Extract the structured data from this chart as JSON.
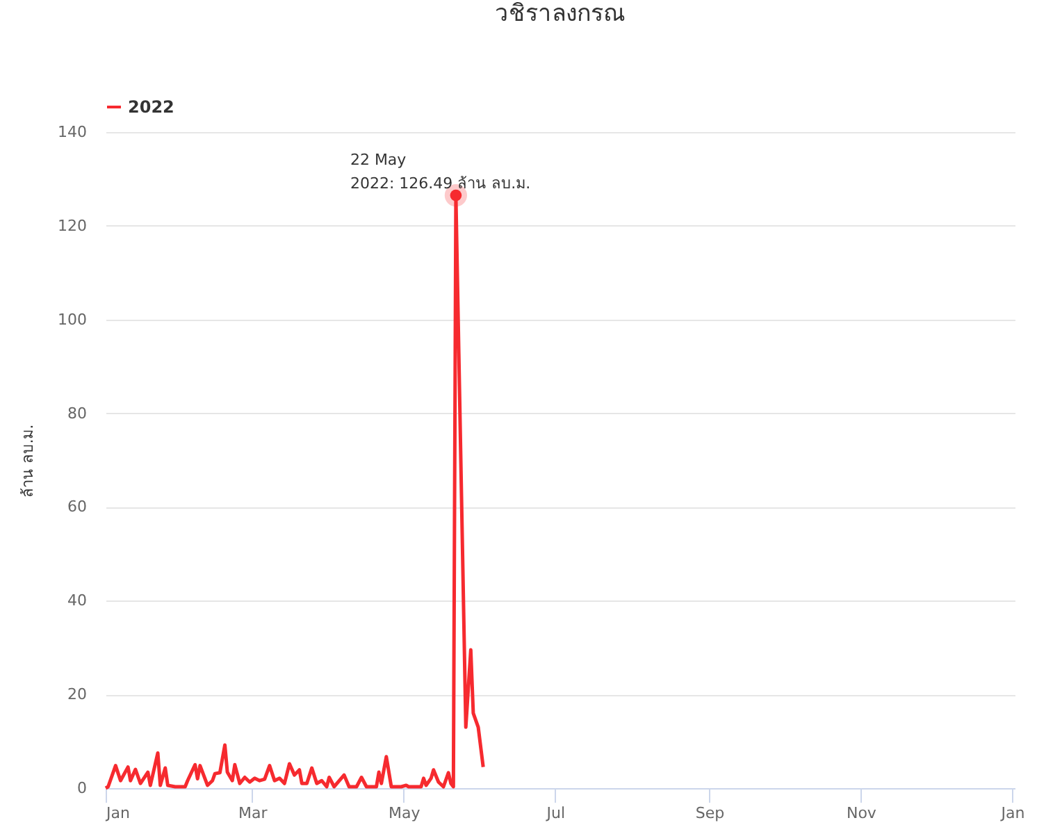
{
  "chart_data": {
    "type": "line",
    "title": "วชิราลงกรณ",
    "ylabel": "ล้าน ลบ.ม.",
    "x": [
      "2022-01-01",
      "2022-01-02",
      "2022-01-05",
      "2022-01-07",
      "2022-01-10",
      "2022-01-11",
      "2022-01-13",
      "2022-01-15",
      "2022-01-18",
      "2022-01-19",
      "2022-01-22",
      "2022-01-23",
      "2022-01-25",
      "2022-01-26",
      "2022-01-29",
      "2022-02-02",
      "2022-02-03",
      "2022-02-06",
      "2022-02-07",
      "2022-02-08",
      "2022-02-11",
      "2022-02-13",
      "2022-02-14",
      "2022-02-16",
      "2022-02-18",
      "2022-02-19",
      "2022-02-21",
      "2022-02-22",
      "2022-02-24",
      "2022-02-26",
      "2022-02-28",
      "2022-03-02",
      "2022-03-04",
      "2022-03-06",
      "2022-03-08",
      "2022-03-10",
      "2022-03-12",
      "2022-03-14",
      "2022-03-16",
      "2022-03-18",
      "2022-03-20",
      "2022-03-21",
      "2022-03-23",
      "2022-03-25",
      "2022-03-27",
      "2022-03-29",
      "2022-03-31",
      "2022-04-01",
      "2022-04-03",
      "2022-04-07",
      "2022-04-09",
      "2022-04-12",
      "2022-04-14",
      "2022-04-16",
      "2022-04-20",
      "2022-04-21",
      "2022-04-22",
      "2022-04-24",
      "2022-04-26",
      "2022-04-30",
      "2022-05-02",
      "2022-05-03",
      "2022-05-08",
      "2022-05-09",
      "2022-05-10",
      "2022-05-12",
      "2022-05-13",
      "2022-05-15",
      "2022-05-17",
      "2022-05-19",
      "2022-05-20",
      "2022-05-21",
      "2022-05-22",
      "2022-05-26",
      "2022-05-28",
      "2022-05-29",
      "2022-05-31",
      "2022-06-02"
    ],
    "series": [
      {
        "name": "2022",
        "color": "#f62a2f",
        "values": [
          0,
          0.3,
          4.8,
          1.6,
          4.5,
          1.6,
          4.0,
          1,
          3.4,
          0.6,
          7.5,
          0.6,
          4.3,
          0.6,
          0.3,
          0.3,
          1.6,
          5,
          2,
          4.8,
          0.6,
          1.6,
          3.1,
          3.3,
          9.2,
          3.4,
          1.6,
          5,
          1,
          2.3,
          1.3,
          2.1,
          1.6,
          1.9,
          4.8,
          1.6,
          2.1,
          1,
          5.2,
          2.8,
          3.9,
          1,
          1,
          4.3,
          1,
          1.6,
          0.3,
          2.3,
          0.3,
          2.8,
          0.3,
          0.3,
          2.3,
          0.3,
          0.3,
          3.4,
          1,
          6.7,
          0.3,
          0.3,
          0.6,
          0.3,
          0.3,
          2.1,
          0.6,
          2.1,
          3.9,
          1.3,
          0.3,
          3.3,
          1,
          0.3,
          126.49,
          13,
          29.5,
          16,
          13,
          4.5
        ]
      }
    ],
    "xlim": [
      "2022-01-01",
      "2023-01-02"
    ],
    "xticks": [
      {
        "value": "2022-01-01",
        "label": "Jan"
      },
      {
        "value": "2022-03-01",
        "label": "Mar"
      },
      {
        "value": "2022-05-01",
        "label": "May"
      },
      {
        "value": "2022-07-01",
        "label": "Jul"
      },
      {
        "value": "2022-09-01",
        "label": "Sep"
      },
      {
        "value": "2022-11-01",
        "label": "Nov"
      },
      {
        "value": "2023-01-01",
        "label": "Jan"
      }
    ],
    "ylim": [
      0,
      140
    ],
    "yticks": [
      0,
      20,
      40,
      60,
      80,
      100,
      120,
      140
    ],
    "grid": "y",
    "legend": "top",
    "marker": "none",
    "line_style": "solid",
    "annotations": [
      {
        "text": "22 May\n2022: 126.49 ล้าน ลบ.ม.",
        "x": "2022-05-22",
        "y": 126.49
      }
    ]
  }
}
